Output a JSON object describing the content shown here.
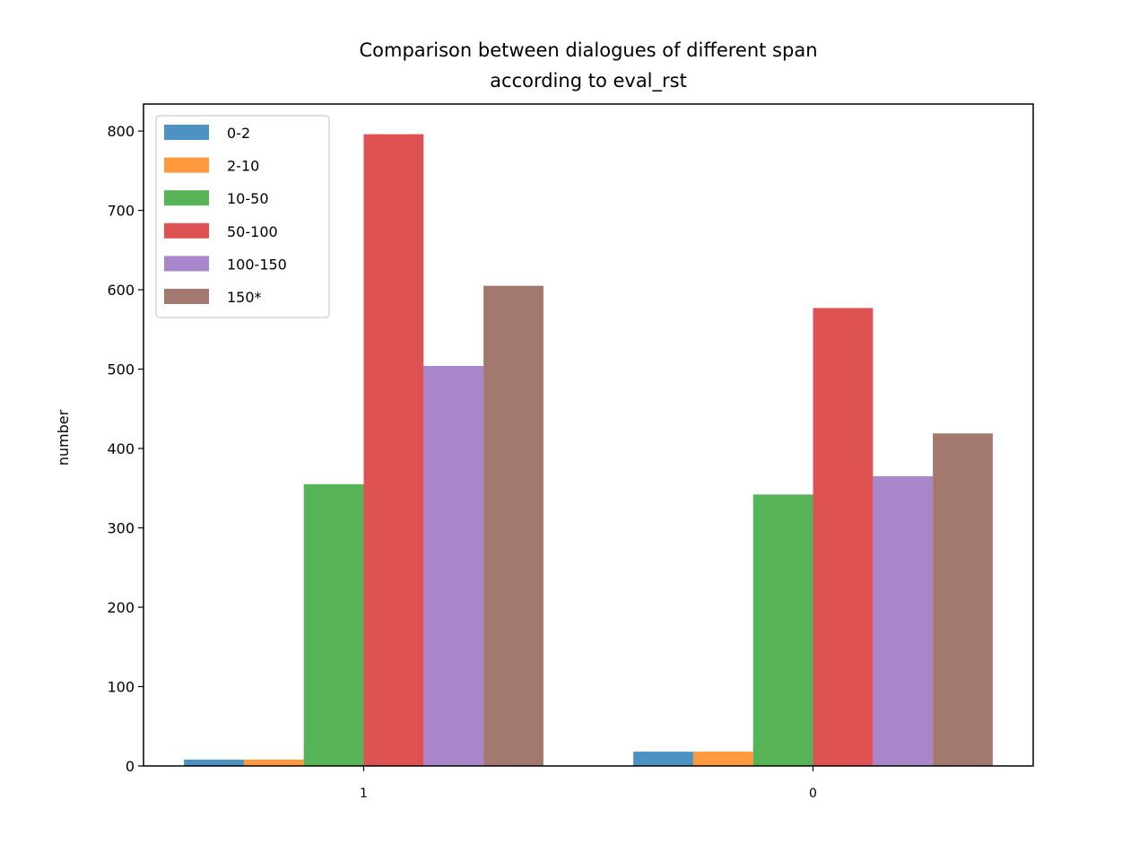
{
  "chart_data": {
    "type": "bar",
    "title": "Comparison between dialogues of different span",
    "subtitle": "according to eval_rst",
    "xlabel": "",
    "ylabel": "number",
    "categories": [
      "1",
      "0"
    ],
    "series": [
      {
        "name": "0-2",
        "color": "#1f77b4",
        "values": [
          8,
          18
        ]
      },
      {
        "name": "2-10",
        "color": "#ff7f0e",
        "values": [
          8,
          18
        ]
      },
      {
        "name": "10-50",
        "color": "#2ca02c",
        "values": [
          355,
          342
        ]
      },
      {
        "name": "50-100",
        "color": "#d62728",
        "values": [
          796,
          577
        ]
      },
      {
        "name": "100-150",
        "color": "#9467bd",
        "values": [
          504,
          365
        ]
      },
      {
        "name": "150*",
        "color": "#8c564b",
        "values": [
          605,
          419
        ]
      }
    ],
    "ylim": [
      0,
      834
    ],
    "yticks": [
      0,
      100,
      200,
      300,
      400,
      500,
      600,
      700,
      800
    ],
    "grid": false,
    "legend_position": "top-left",
    "bar_opacity": 0.8
  }
}
